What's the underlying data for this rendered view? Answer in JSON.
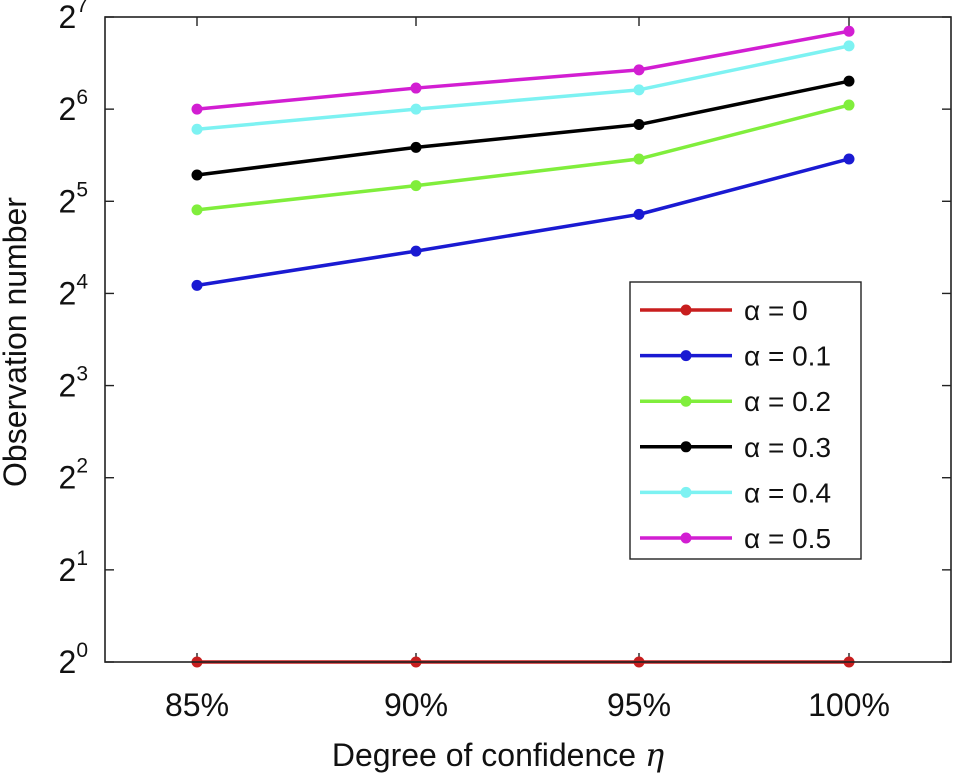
{
  "chart_data": {
    "type": "line",
    "xlabel": "Degree of confidence",
    "xlabel_symbol": "η",
    "ylabel": "Observation number",
    "categories": [
      "85%",
      "90%",
      "95%",
      "100%"
    ],
    "yscale": "log2",
    "ylim": [
      1,
      128
    ],
    "yticks": [
      {
        "base": "2",
        "exp": "0"
      },
      {
        "base": "2",
        "exp": "1"
      },
      {
        "base": "2",
        "exp": "2"
      },
      {
        "base": "2",
        "exp": "3"
      },
      {
        "base": "2",
        "exp": "4"
      },
      {
        "base": "2",
        "exp": "5"
      },
      {
        "base": "2",
        "exp": "6"
      },
      {
        "base": "2",
        "exp": "7"
      }
    ],
    "grid": false,
    "legend_position": "lower-right",
    "series": [
      {
        "name": "α = 0",
        "color": "#c81e1e",
        "values": [
          1,
          1,
          1,
          1
        ]
      },
      {
        "name": "α = 0.1",
        "color": "#1a1ad2",
        "values": [
          17,
          22,
          29,
          44
        ]
      },
      {
        "name": "α = 0.2",
        "color": "#80ee3c",
        "values": [
          30,
          36,
          44,
          66
        ]
      },
      {
        "name": "α = 0.3",
        "color": "#000000",
        "values": [
          39,
          48,
          57,
          79
        ]
      },
      {
        "name": "α = 0.4",
        "color": "#7df2f2",
        "values": [
          55,
          64,
          74,
          103
        ]
      },
      {
        "name": "α = 0.5",
        "color": "#d21ed2",
        "values": [
          64,
          75,
          86,
          115
        ]
      }
    ]
  }
}
